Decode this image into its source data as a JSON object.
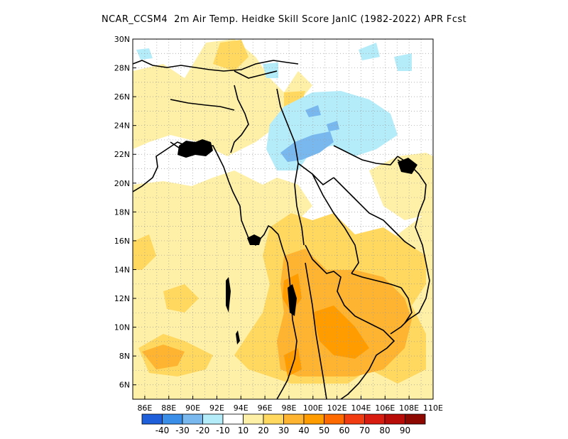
{
  "title": "NCAR_CCSM4  2m Air Temp. Heidke Skill Score JanIC (1982-2022) APR Fcst",
  "lon_labels": [
    "86E",
    "88E",
    "90E",
    "92E",
    "94E",
    "96E",
    "98E",
    "100E",
    "102E",
    "104E",
    "106E",
    "108E",
    "110E"
  ],
  "lat_labels": [
    "6N",
    "8N",
    "10N",
    "12N",
    "14N",
    "16N",
    "18N",
    "20N",
    "22N",
    "24N",
    "26N",
    "28N",
    "30N"
  ],
  "colorbar": {
    "colors": [
      "#1f5fd9",
      "#3a8ee8",
      "#78b8ee",
      "#b4ecfa",
      "#ffffff",
      "#fff0a8",
      "#ffd860",
      "#ffb431",
      "#ff9c00",
      "#ff6a00",
      "#f03c10",
      "#d81c10",
      "#b80c08",
      "#8c0800"
    ],
    "labels": [
      "-40",
      "-30",
      "-20",
      "-10",
      "10",
      "20",
      "30",
      "40",
      "50",
      "60",
      "70",
      "80",
      "90"
    ]
  },
  "map": {
    "lon_range": [
      85,
      110
    ],
    "lat_range": [
      5,
      30
    ],
    "grid_step_deg": 1,
    "colors": {
      "light_yellow": "#fff0a8",
      "yellow": "#ffd860",
      "light_orange": "#ffb431",
      "orange": "#ff9c00",
      "light_blue": "#b4ecfa",
      "blue": "#78b8ee",
      "coast": "#000000"
    }
  }
}
